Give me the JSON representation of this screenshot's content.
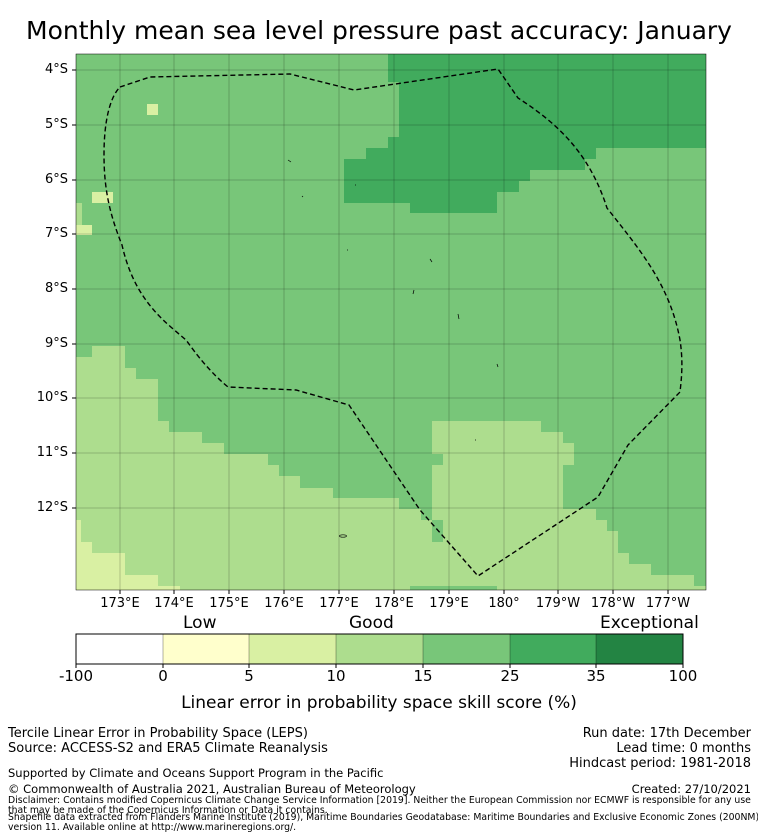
{
  "title": "Monthly mean sea level pressure past accuracy: January",
  "map": {
    "lat_labels": [
      "4°S",
      "5°S",
      "6°S",
      "7°S",
      "8°S",
      "9°S",
      "10°S",
      "11°S",
      "12°S"
    ],
    "lon_labels": [
      "173°E",
      "174°E",
      "175°E",
      "176°E",
      "177°E",
      "178°E",
      "179°E",
      "180°",
      "179°W",
      "178°W",
      "177°W"
    ],
    "categories": {
      "low": "Low",
      "good": "Good",
      "exceptional": "Exceptional"
    },
    "colors": {
      "c0": "#ffffff",
      "c1": "#ffffcc",
      "c2": "#d9f0a3",
      "c3": "#addd8e",
      "c4": "#78c679",
      "c5": "#41ab5d",
      "c6": "#238443"
    },
    "boundary": "Exclusive Economic Zone (dashed)"
  },
  "colorbar": {
    "ticks": [
      "-100",
      "0",
      "5",
      "10",
      "15",
      "25",
      "35",
      "100"
    ],
    "title": "Linear error in probability space skill score (%)"
  },
  "footer": {
    "method": "Tercile Linear Error in Probability Space (LEPS)",
    "source": "Source: ACCESS-S2 and ERA5 Climate Reanalysis",
    "support": "Supported by Climate and Oceans Support Program in the Pacific",
    "copyright": "© Commonwealth of Australia 2021, Australian Bureau of Meteorology",
    "disclaimer_1": "Disclaimer: Contains modified Copernicus Climate Change Service Information [2019]. Neither the European Commission nor ECMWF is responsible for any use",
    "disclaimer_2": "that may be made of the Copernicus Information or Data it contains.",
    "shapefile_1": "Shapefile data extracted from Flanders Marine Institute (2019), Maritime Boundaries Geodatabase: Maritime Boundaries and Exclusive Economic Zones (200NM),",
    "shapefile_2": "version 11. Available online at http://www.marineregions.org/.",
    "run_date": "Run date: 17th December",
    "lead_time": "Lead time: 0 months",
    "hindcast": "Hindcast period: 1981-2018",
    "created": "Created: 27/10/2021"
  }
}
